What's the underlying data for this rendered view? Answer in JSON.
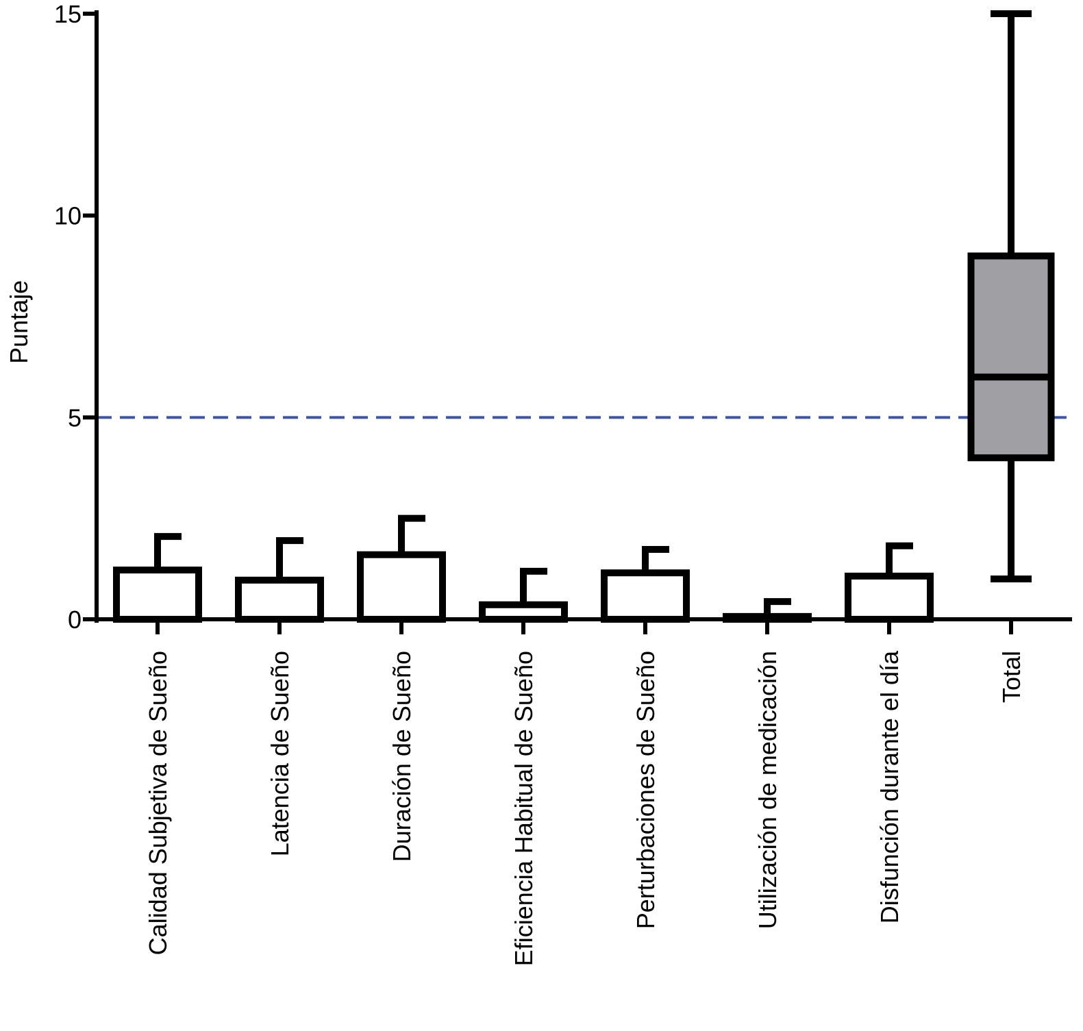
{
  "chart_data": {
    "type": "bar",
    "ylabel": "Puntaje",
    "categories": [
      "Calidad Subjetiva de Sueño",
      "Latencia de Sueño",
      "Duración de Sueño",
      "Eficiencia Habitual de Sueño",
      "Perturbaciones de Sueño",
      "Utilización de medicación",
      "Disfunción durante el día",
      "Total"
    ],
    "values": [
      1.22,
      0.97,
      1.6,
      0.36,
      1.15,
      0.07,
      1.07,
      null
    ],
    "errors": [
      0.83,
      0.98,
      0.9,
      0.83,
      0.58,
      0.37,
      0.75,
      null
    ],
    "color": "#ffffff",
    "box": {
      "whisker_low": 1,
      "q1": 4,
      "median": 6,
      "q3": 9,
      "whisker_high": 15,
      "color": "#a0a0a4"
    },
    "reference_line": 5,
    "reference_color": "#3d55a3",
    "ylim": [
      0,
      15
    ],
    "yticks": [
      0,
      5,
      10,
      15
    ]
  }
}
